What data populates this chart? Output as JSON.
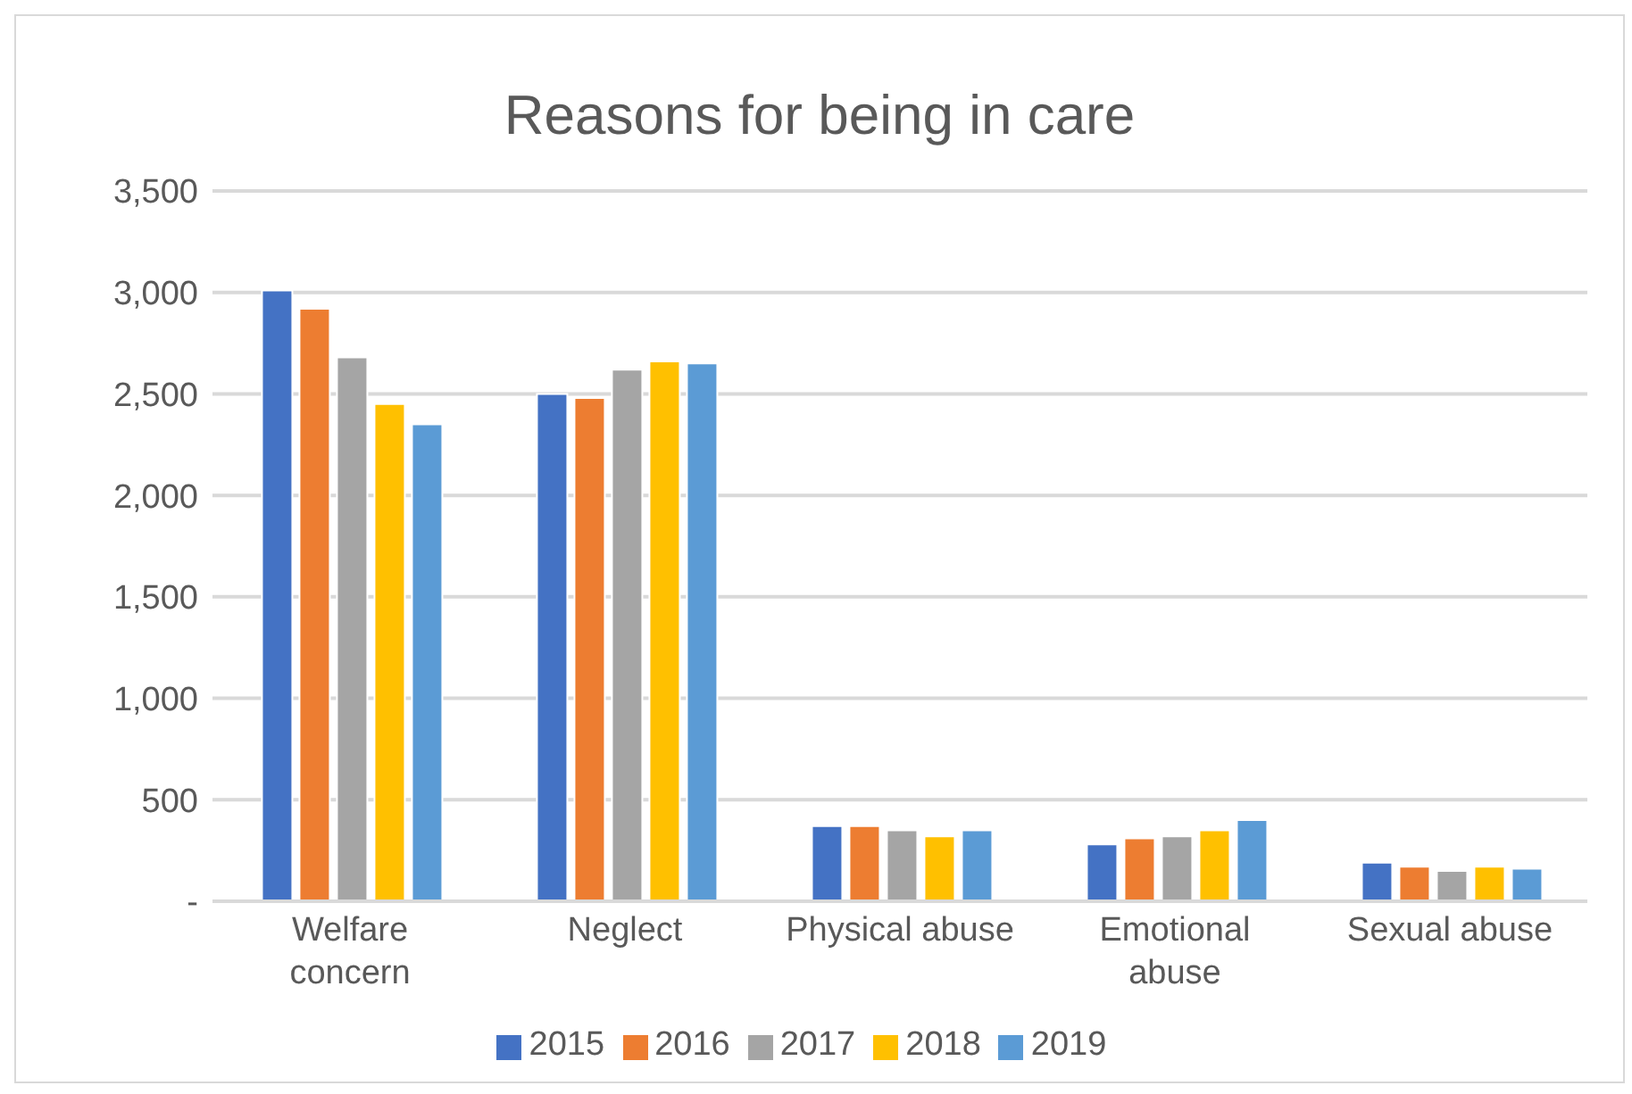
{
  "chart_data": {
    "type": "bar",
    "title": "Reasons for being in care",
    "categories": [
      "Welfare concern",
      "Neglect",
      "Physical abuse",
      "Emotional abuse",
      "Sexual abuse"
    ],
    "series": [
      {
        "name": "2015",
        "color": "#4472c4",
        "values": [
          3010,
          2500,
          370,
          280,
          190
        ]
      },
      {
        "name": "2016",
        "color": "#ed7d31",
        "values": [
          2920,
          2480,
          370,
          310,
          170
        ]
      },
      {
        "name": "2017",
        "color": "#a5a5a5",
        "values": [
          2680,
          2620,
          350,
          320,
          150
        ]
      },
      {
        "name": "2018",
        "color": "#ffc000",
        "values": [
          2450,
          2660,
          320,
          350,
          170
        ]
      },
      {
        "name": "2019",
        "color": "#5b9bd5",
        "values": [
          2350,
          2650,
          350,
          400,
          160
        ]
      }
    ],
    "ylim": [
      0,
      3500
    ],
    "yticks": [
      {
        "value": 0,
        "label": "-"
      },
      {
        "value": 500,
        "label": "500"
      },
      {
        "value": 1000,
        "label": "1,000"
      },
      {
        "value": 1500,
        "label": "1,500"
      },
      {
        "value": 2000,
        "label": "2,000"
      },
      {
        "value": 2500,
        "label": "2,500"
      },
      {
        "value": 3000,
        "label": "3,000"
      },
      {
        "value": 3500,
        "label": "3,500"
      }
    ],
    "grid": "y",
    "legend": "bottom"
  }
}
